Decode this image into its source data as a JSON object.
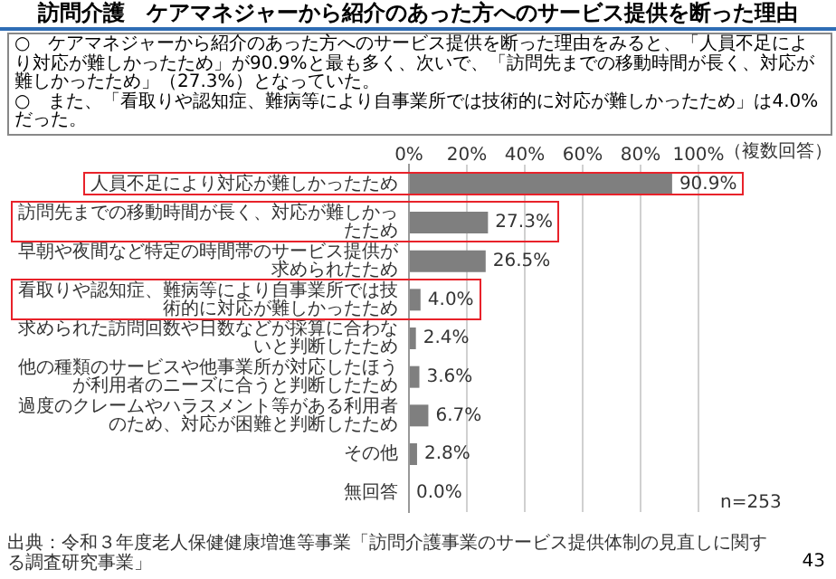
{
  "chart_data": {
    "type": "bar",
    "orientation": "horizontal",
    "title": "訪問介護　ケアマネジャーから紹介のあった方へのサービス提供を断った理由",
    "subtitle": "○　ケアマネジャーから紹介のあった方へのサービス提供を断った理由をみると、「人員不足により対応が難しかったため」が90.9%と最も多く、次いで、「訪問先までの移動時間が長く、対応が難しかったため」（27.3%）となっていた。",
    "annotations": [
      "○　また、「看取りや認知症、難病等により自事業所では技術的に対応が難しかったため」は4.0%だった。",
      "（複数回答）",
      "n=253",
      "出典：令和３年度老人保健健康増進等事業「訪問介護事業のサービス提供体制の見直しに関する調査研究事業」",
      "43"
    ],
    "categories": [
      "人員不足により対応が難しかったため",
      "訪問先までの移動時間が長く、対応が難しかったため",
      "早朝や夜間など特定の時間帯のサービス提供が求められたため",
      "看取りや認知症、難病等により自事業所では技術的に対応が難しかったため",
      "求められた訪問回数や日数などが採算に合わないと判断したため",
      "他の種類のサービスや他事業所が対応したほうが利用者のニーズに合うと判断したため",
      "過度のクレームやハラスメント等がある利用者のため、対応が困難と判断したため",
      "その他",
      "無回答"
    ],
    "values": [
      90.9,
      27.3,
      26.5,
      4.0,
      2.4,
      3.6,
      6.7,
      2.8,
      0.0
    ],
    "value_labels": [
      "90.9%",
      "27.3%",
      "26.5%",
      "4.0%",
      "2.4%",
      "3.6%",
      "6.7%",
      "2.8%",
      "0.0%"
    ],
    "color": "#7f7f7f",
    "xlim": [
      0,
      100
    ],
    "xticks": [
      {
        "value": 0,
        "label": "0%"
      },
      {
        "value": 20,
        "label": "20%"
      },
      {
        "value": 40,
        "label": "40%"
      },
      {
        "value": 60,
        "label": "60%"
      },
      {
        "value": 80,
        "label": "80%"
      },
      {
        "value": 100,
        "label": "100%"
      }
    ],
    "grid": "x",
    "legend": false
  }
}
